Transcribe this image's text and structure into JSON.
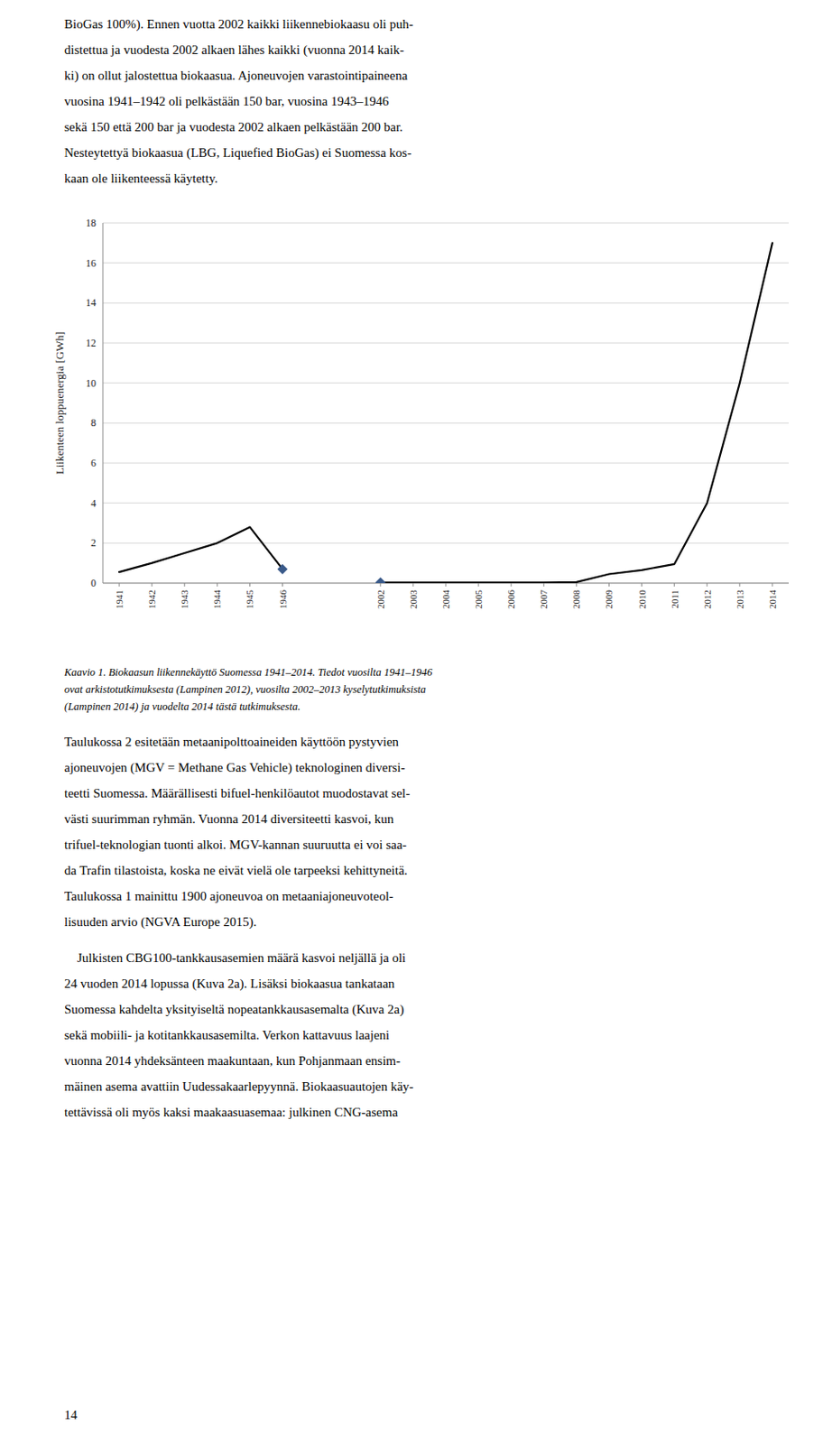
{
  "chart_data": {
    "type": "line",
    "categories": [
      "1941",
      "1942",
      "1943",
      "1944",
      "1945",
      "1946",
      null,
      null,
      "2002",
      "2003",
      "2004",
      "2005",
      "2006",
      "2007",
      "2008",
      "2009",
      "2010",
      "2011",
      "2012",
      "2013",
      "2014"
    ],
    "series": [
      {
        "color": "#000000",
        "values": [
          0.55,
          1.0,
          1.5,
          2.0,
          2.8,
          0.7,
          null,
          null,
          0.03,
          0.03,
          0.03,
          0.03,
          0.03,
          0.03,
          0.05,
          0.45,
          0.65,
          0.95,
          4.0,
          10.0,
          17.0
        ]
      },
      {
        "type": "scatter",
        "marker": "diamond",
        "color": "#3a5a8a",
        "values": [
          null,
          null,
          null,
          null,
          null,
          0.7,
          null,
          null,
          0.03,
          null,
          null,
          null,
          null,
          null,
          null,
          null,
          null,
          null,
          null,
          null,
          null
        ]
      }
    ],
    "ylabel": "Liikenteen loppuenergia [GWh]",
    "ylim": [
      0,
      18
    ],
    "yticks": [
      0,
      2,
      4,
      6,
      8,
      10,
      12,
      14,
      16,
      18
    ],
    "grid": true
  },
  "text_before": [
    "BioGas 100%). Ennen vuotta 2002 kaikki liikennebiokaasu oli puh-",
    "distettua ja vuodesta 2002 alkaen lähes kaikki (vuonna 2014 kaik-",
    "ki) on ollut jalostettua biokaasua. Ajoneuvojen varastointipaineena",
    "vuosina 1941–1942 oli pelkästään 150 bar, vuosina 1943–1946",
    "sekä 150 että 200 bar ja vuodesta 2002 alkaen pelkästään 200 bar.",
    "Nesteytettyä biokaasua (LBG, Liquefied BioGas) ei Suomessa kos-",
    "kaan ole liikenteessä käytetty."
  ],
  "caption": [
    "Kaavio 1. Biokaasun liikennekäyttö Suomessa 1941–2014. Tiedot vuosilta 1941–1946",
    "ovat arkistotutkimuksesta (Lampinen 2012), vuosilta 2002–2013 kyselytutkimuksista",
    "(Lampinen 2014) ja vuodelta 2014 tästä tutkimuksesta."
  ],
  "text_after": [
    [
      "Taulukossa 2 esitetään metaanipolttoaineiden käyttöön pystyvien",
      "ajoneuvojen (MGV = Methane Gas Vehicle) teknologinen diversi-",
      "teetti Suomessa. Määrällisesti bifuel-henkilöautot muodostavat sel-",
      "västi suurimman ryhmän. Vuonna 2014 diversiteetti kasvoi, kun",
      "trifuel-teknologian tuonti alkoi. MGV-kannan suuruutta ei voi saa-",
      "da Trafin tilastoista, koska ne eivät vielä ole tarpeeksi kehittyneitä.",
      "Taulukossa 1 mainittu 1900 ajoneuvoa on metaaniajoneuvoteol-",
      "lisuuden arvio (NGVA Europe 2015)."
    ],
    [
      "    Julkisten CBG100-tankkausasemien määrä kasvoi neljällä ja oli",
      "24 vuoden 2014 lopussa (Kuva 2a). Lisäksi biokaasua tankataan",
      "Suomessa kahdelta yksityiseltä nopeatankkausasemalta (Kuva 2a)",
      "sekä mobiili- ja kotitankkausasemilta. Verkon kattavuus laajeni",
      "vuonna 2014 yhdeksänteen maakuntaan, kun Pohjanmaan ensim-",
      "mäinen asema avattiin Uudessakaarlepyynnä. Biokaasuautojen käy-",
      "tettävissä oli myös kaksi maakaasuasemaa: julkinen CNG-asema"
    ]
  ],
  "page_number": "14"
}
